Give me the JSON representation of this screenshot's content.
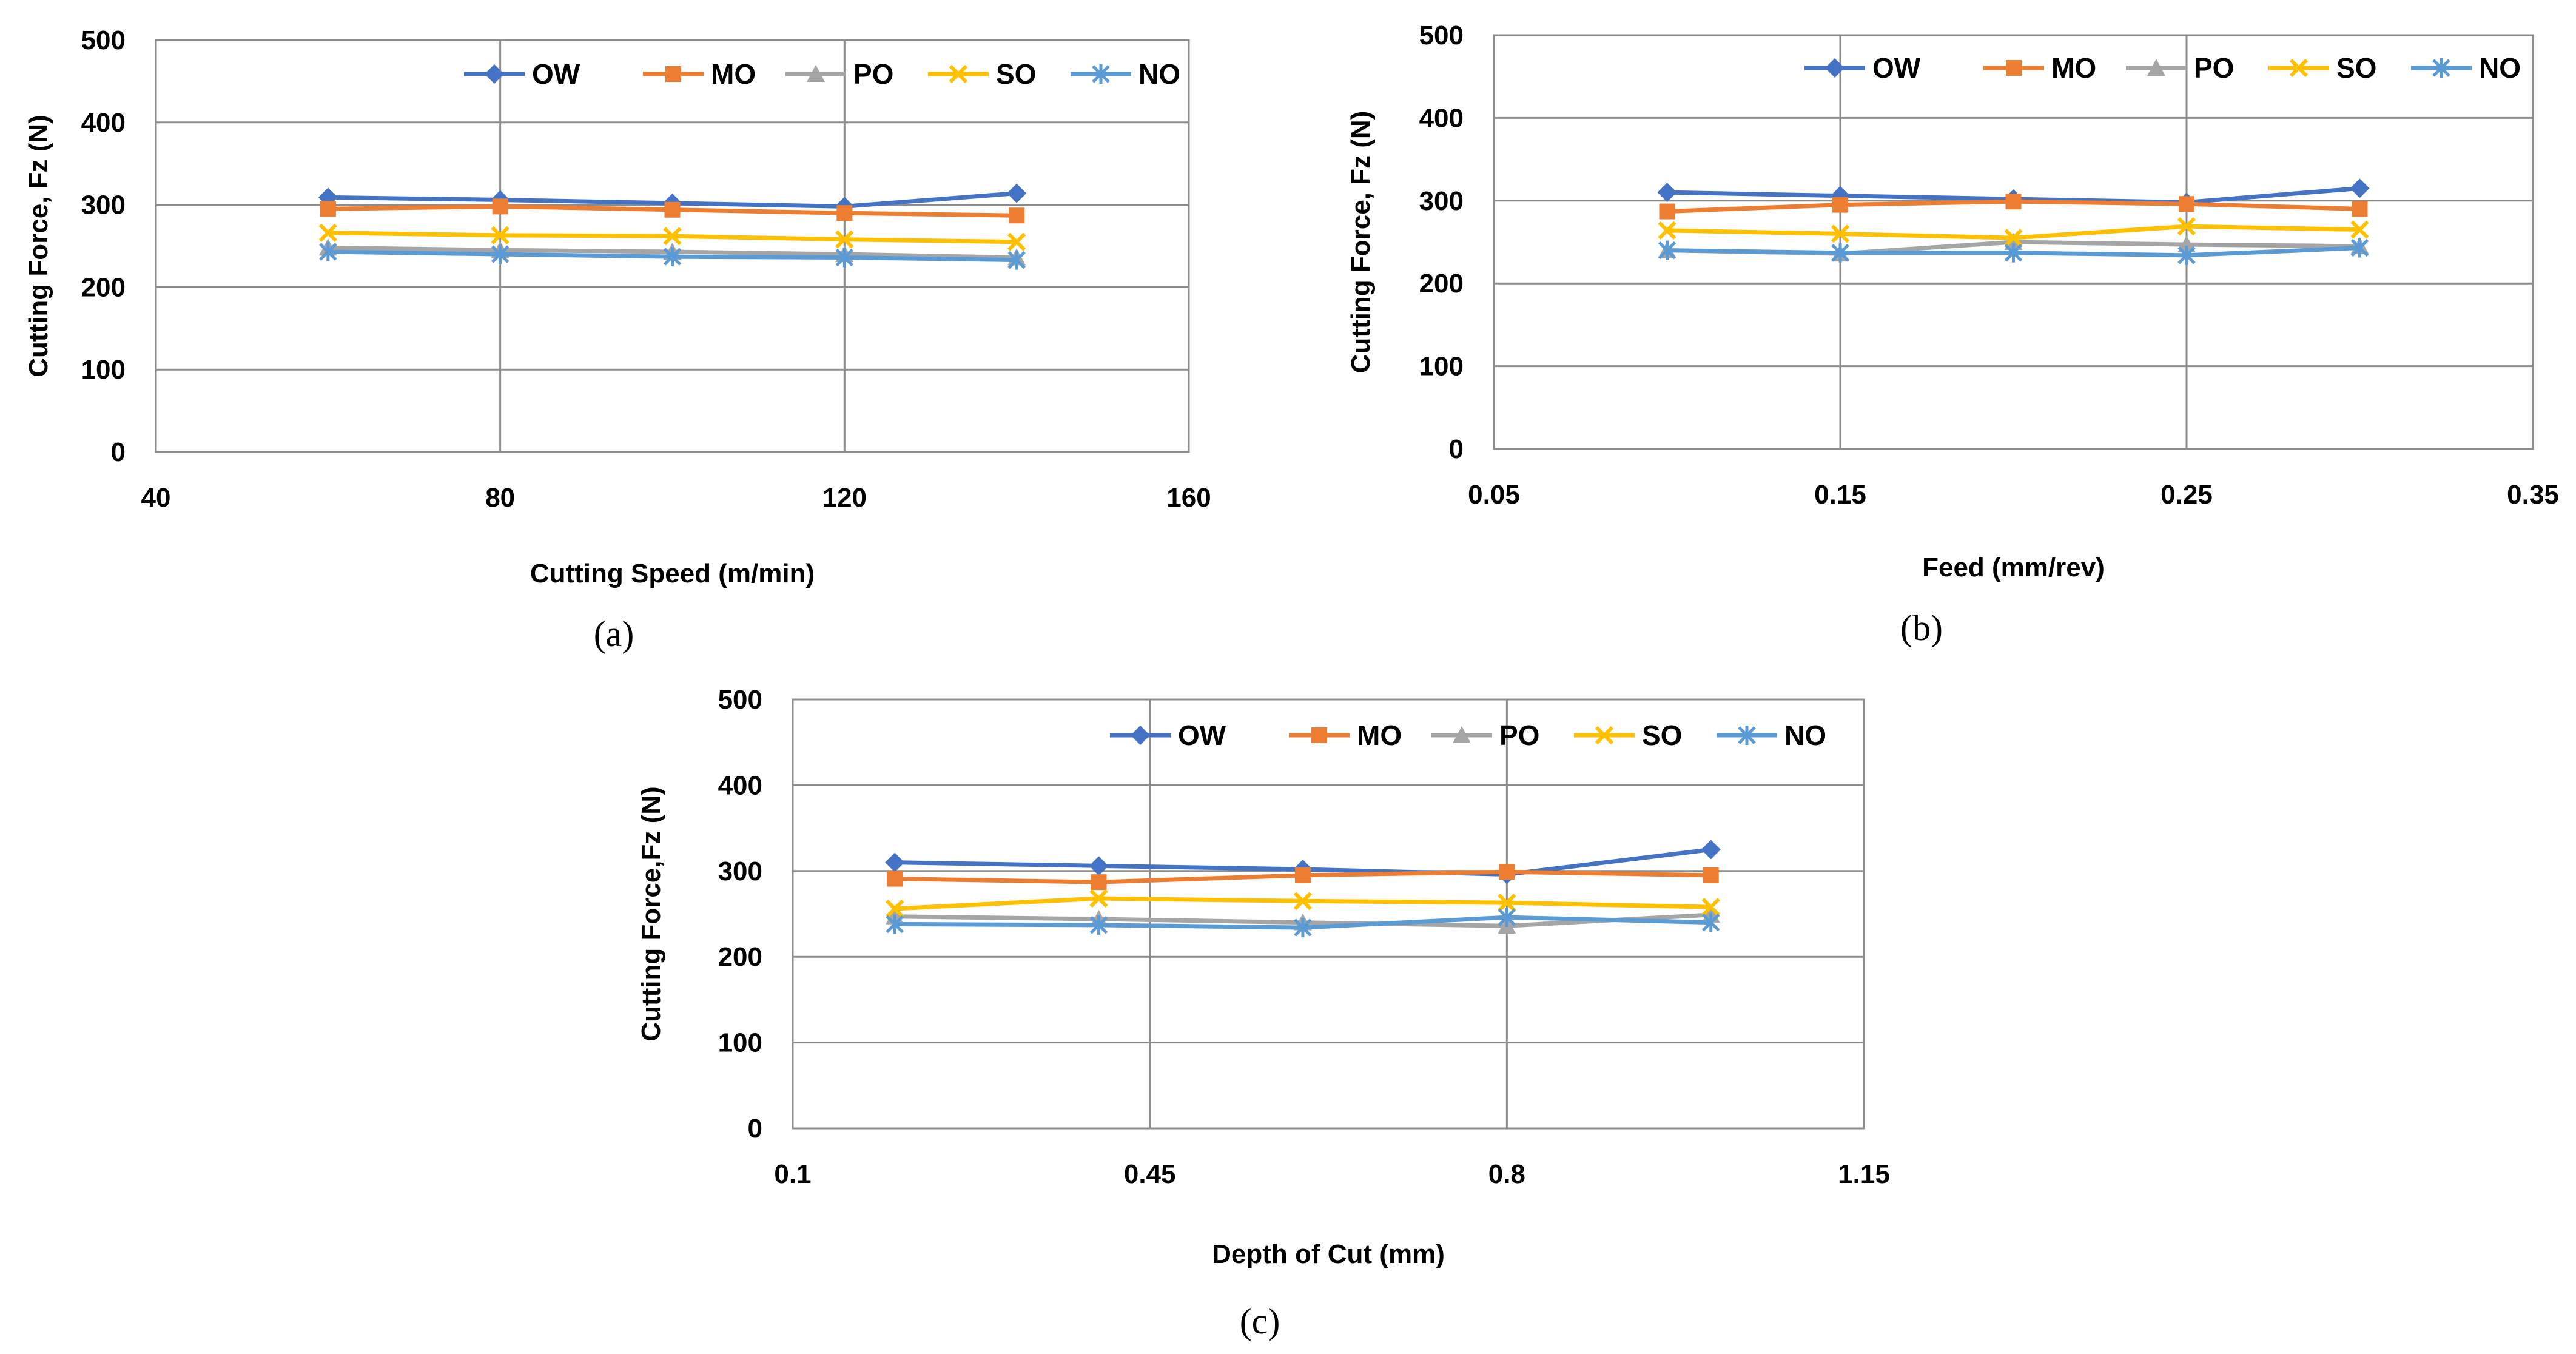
{
  "chart_data": [
    {
      "type": "line",
      "id": "a",
      "caption": "(a)",
      "xlabel": "Cutting Speed (m/min)",
      "ylabel": "Cutting Force, Fz (N)",
      "xlim": [
        40,
        160
      ],
      "ylim": [
        0,
        500
      ],
      "x_ticks": [
        40,
        80,
        120,
        160
      ],
      "x_tick_labels": [
        "40",
        "80",
        "120",
        "160"
      ],
      "y_ticks": [
        0,
        100,
        200,
        300,
        400,
        500
      ],
      "y_tick_labels": [
        "0",
        "100",
        "200",
        "300",
        "400",
        "500"
      ],
      "grid": true,
      "legend_position": "top-right",
      "x": [
        60,
        80,
        100,
        120,
        140
      ],
      "series": [
        {
          "name": "OW",
          "color": "#4472C4",
          "marker": "diamond",
          "values": [
            309,
            306,
            302,
            298,
            314
          ]
        },
        {
          "name": "MO",
          "color": "#ED7D31",
          "marker": "square",
          "values": [
            295,
            298,
            294,
            290,
            287
          ]
        },
        {
          "name": "PO",
          "color": "#A5A5A5",
          "marker": "triangle",
          "values": [
            248,
            245,
            243,
            240,
            236
          ]
        },
        {
          "name": "SO",
          "color": "#FFC000",
          "marker": "x",
          "values": [
            266,
            263,
            262,
            258,
            255
          ]
        },
        {
          "name": "NO",
          "color": "#5B9BD5",
          "marker": "star",
          "values": [
            243,
            240,
            237,
            236,
            233
          ]
        }
      ]
    },
    {
      "type": "line",
      "id": "b",
      "caption": "(b)",
      "xlabel": "Feed (mm/rev)",
      "ylabel": "Cutting Force, Fz (N)",
      "xlim": [
        0.05,
        0.35
      ],
      "ylim": [
        0,
        500
      ],
      "x_ticks": [
        0.05,
        0.15,
        0.25,
        0.35
      ],
      "x_tick_labels": [
        "0.05",
        "0.15",
        "0.25",
        "0.35"
      ],
      "y_ticks": [
        0,
        100,
        200,
        300,
        400,
        500
      ],
      "y_tick_labels": [
        "0",
        "100",
        "200",
        "300",
        "400",
        "500"
      ],
      "grid": true,
      "legend_position": "top-right",
      "x": [
        0.1,
        0.15,
        0.2,
        0.25,
        0.3
      ],
      "series": [
        {
          "name": "OW",
          "color": "#4472C4",
          "marker": "diamond",
          "values": [
            310,
            306,
            302,
            298,
            315
          ]
        },
        {
          "name": "MO",
          "color": "#ED7D31",
          "marker": "square",
          "values": [
            287,
            295,
            299,
            296,
            290
          ]
        },
        {
          "name": "PO",
          "color": "#A5A5A5",
          "marker": "triangle",
          "values": [
            240,
            236,
            250,
            247,
            245
          ]
        },
        {
          "name": "SO",
          "color": "#FFC000",
          "marker": "x",
          "values": [
            264,
            260,
            255,
            269,
            265
          ]
        },
        {
          "name": "NO",
          "color": "#5B9BD5",
          "marker": "star",
          "values": [
            240,
            237,
            237,
            234,
            243
          ]
        }
      ]
    },
    {
      "type": "line",
      "id": "c",
      "caption": "(c)",
      "xlabel": "Depth of Cut (mm)",
      "ylabel": "Cutting Force,Fz (N)",
      "xlim": [
        0.1,
        1.15
      ],
      "ylim": [
        0,
        500
      ],
      "x_ticks": [
        0.1,
        0.45,
        0.8,
        1.15
      ],
      "x_tick_labels": [
        "0.1",
        "0.45",
        "0.8",
        "1.15"
      ],
      "y_ticks": [
        0,
        100,
        200,
        300,
        400,
        500
      ],
      "y_tick_labels": [
        "0",
        "100",
        "200",
        "300",
        "400",
        "500"
      ],
      "grid": true,
      "legend_position": "top-right",
      "x": [
        0.2,
        0.4,
        0.6,
        0.8,
        1.0
      ],
      "series": [
        {
          "name": "OW",
          "color": "#4472C4",
          "marker": "diamond",
          "values": [
            310,
            306,
            302,
            296,
            325
          ]
        },
        {
          "name": "MO",
          "color": "#ED7D31",
          "marker": "square",
          "values": [
            291,
            287,
            295,
            299,
            295
          ]
        },
        {
          "name": "PO",
          "color": "#A5A5A5",
          "marker": "triangle",
          "values": [
            247,
            244,
            240,
            236,
            249
          ]
        },
        {
          "name": "SO",
          "color": "#FFC000",
          "marker": "x",
          "values": [
            256,
            268,
            265,
            263,
            258
          ]
        },
        {
          "name": "NO",
          "color": "#5B9BD5",
          "marker": "star",
          "values": [
            238,
            237,
            234,
            246,
            240
          ]
        }
      ]
    }
  ]
}
